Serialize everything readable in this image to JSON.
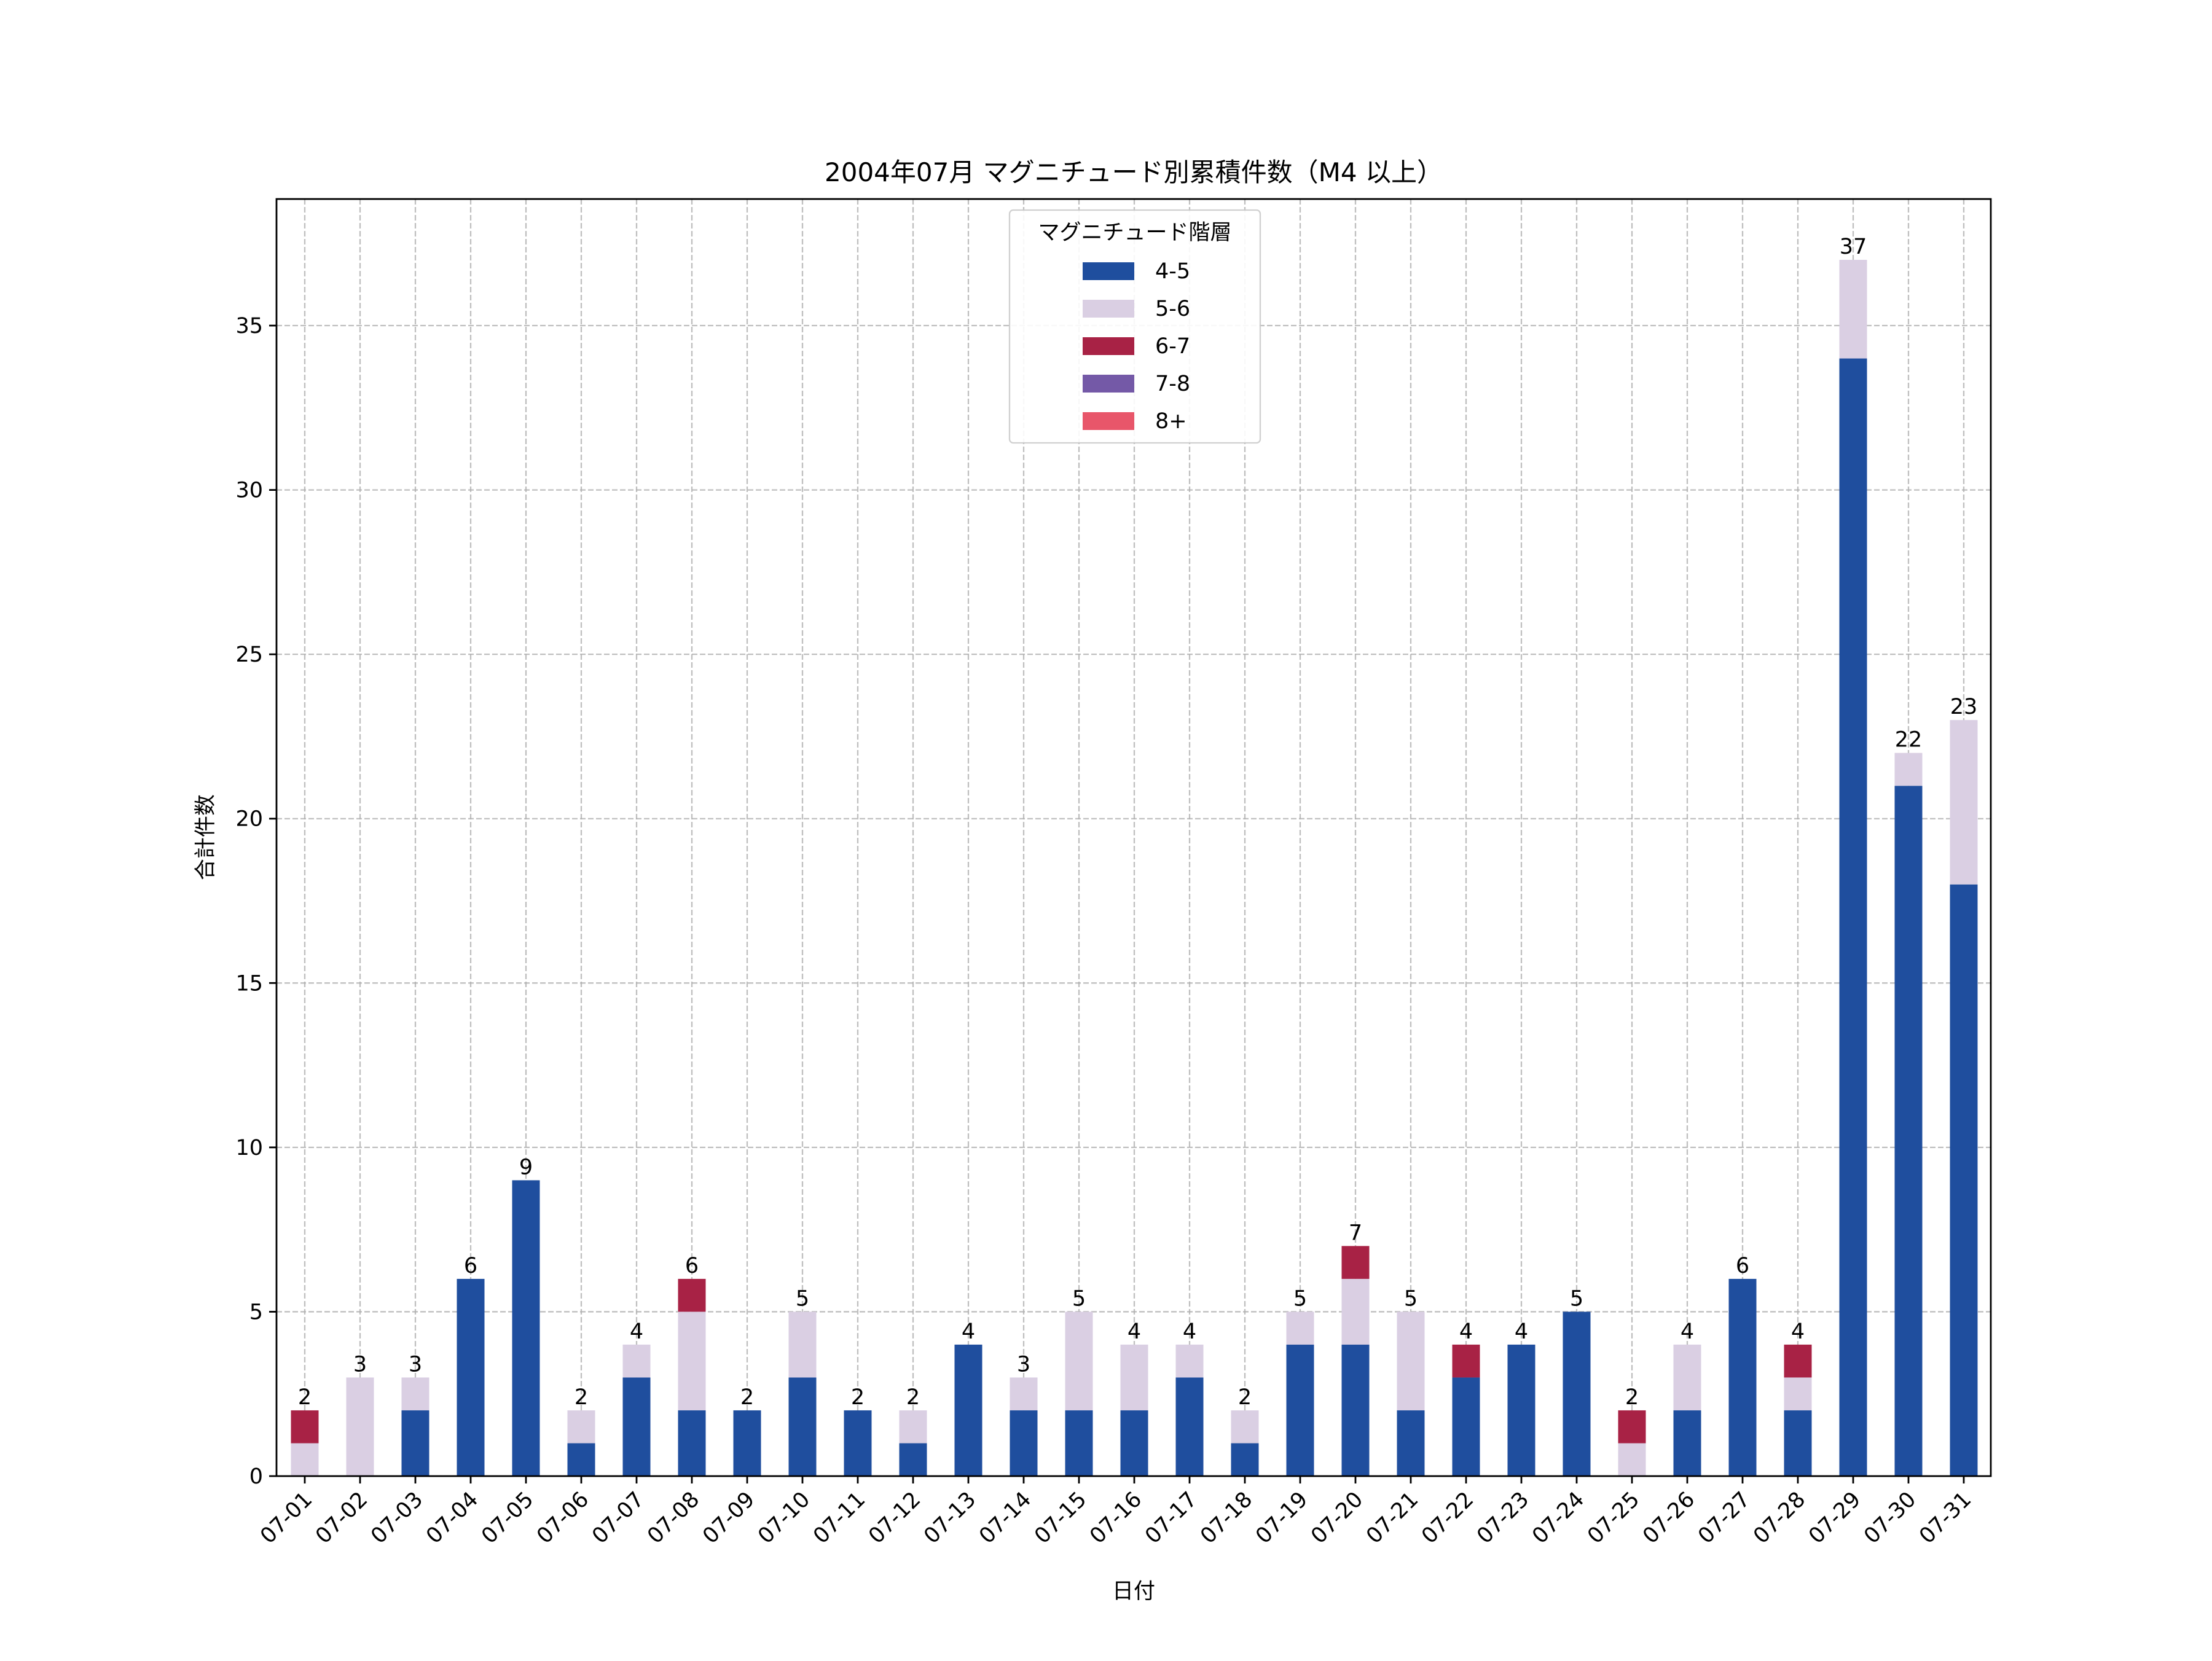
{
  "chart_data": {
    "type": "bar",
    "stacked": true,
    "title": "2004年07月 マグニチュード別累積件数（M4 以上）",
    "xlabel": "日付",
    "ylabel": "合計件数",
    "ylim": [
      0,
      38.85
    ],
    "yticks": [
      0,
      5,
      10,
      15,
      20,
      25,
      30,
      35
    ],
    "grid": true,
    "legend_position": "top-center",
    "legend_title": "マグニチュード階層",
    "categories": [
      "07-01",
      "07-02",
      "07-03",
      "07-04",
      "07-05",
      "07-06",
      "07-07",
      "07-08",
      "07-09",
      "07-10",
      "07-11",
      "07-12",
      "07-13",
      "07-14",
      "07-15",
      "07-16",
      "07-17",
      "07-18",
      "07-19",
      "07-20",
      "07-21",
      "07-22",
      "07-23",
      "07-24",
      "07-25",
      "07-26",
      "07-27",
      "07-28",
      "07-29",
      "07-30",
      "07-31"
    ],
    "series": [
      {
        "name": "4-5",
        "color": "#1f4e9e",
        "values": [
          0,
          0,
          2,
          6,
          9,
          1,
          3,
          2,
          2,
          3,
          2,
          1,
          4,
          2,
          2,
          2,
          3,
          1,
          4,
          4,
          2,
          3,
          4,
          5,
          0,
          2,
          6,
          2,
          34,
          21,
          18
        ]
      },
      {
        "name": "5-6",
        "color": "#dacfe3",
        "values": [
          1,
          3,
          1,
          0,
          0,
          1,
          1,
          3,
          0,
          2,
          0,
          1,
          0,
          1,
          3,
          2,
          1,
          1,
          1,
          2,
          3,
          0,
          0,
          0,
          1,
          2,
          0,
          1,
          3,
          1,
          5
        ]
      },
      {
        "name": "6-7",
        "color": "#a82245",
        "values": [
          1,
          0,
          0,
          0,
          0,
          0,
          0,
          1,
          0,
          0,
          0,
          0,
          0,
          0,
          0,
          0,
          0,
          0,
          0,
          1,
          0,
          1,
          0,
          0,
          1,
          0,
          0,
          1,
          0,
          0,
          0
        ]
      },
      {
        "name": "7-8",
        "color": "#7459a7",
        "values": [
          0,
          0,
          0,
          0,
          0,
          0,
          0,
          0,
          0,
          0,
          0,
          0,
          0,
          0,
          0,
          0,
          0,
          0,
          0,
          0,
          0,
          0,
          0,
          0,
          0,
          0,
          0,
          0,
          0,
          0,
          0
        ]
      },
      {
        "name": "8+",
        "color": "#e8566a",
        "values": [
          0,
          0,
          0,
          0,
          0,
          0,
          0,
          0,
          0,
          0,
          0,
          0,
          0,
          0,
          0,
          0,
          0,
          0,
          0,
          0,
          0,
          0,
          0,
          0,
          0,
          0,
          0,
          0,
          0,
          0,
          0
        ]
      }
    ],
    "totals": [
      2,
      3,
      3,
      6,
      9,
      2,
      4,
      6,
      2,
      5,
      2,
      2,
      4,
      3,
      5,
      4,
      4,
      2,
      5,
      7,
      5,
      4,
      4,
      5,
      2,
      4,
      6,
      4,
      37,
      22,
      23
    ]
  }
}
